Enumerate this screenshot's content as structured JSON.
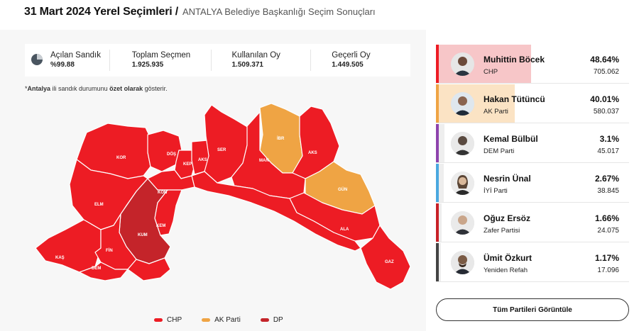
{
  "header": {
    "title": "31 Mart 2024 Yerel Seçimleri /",
    "subtitle": "ANTALYA Belediye Başkanlığı Seçim Sonuçları"
  },
  "stats": [
    {
      "label": "Açılan Sandık",
      "value": "%99.88",
      "icon": "pie-chart-icon"
    },
    {
      "label": "Toplam Seçmen",
      "value": "1.925.935"
    },
    {
      "label": "Kullanılan Oy",
      "value": "1.509.371"
    },
    {
      "label": "Geçerli Oy",
      "value": "1.449.505"
    }
  ],
  "note": {
    "prefix": "*",
    "city": "Antalya",
    "part1": " ili sandık durumunu ",
    "emph": "özet olarak",
    "part2": " gösterir."
  },
  "colors": {
    "chp": "#ed1c24",
    "akp": "#efa444",
    "dp": "#c4242a",
    "dem": "#8e44ad",
    "iyi": "#4aa8e0",
    "zafer": "#c82127",
    "refah": "#444444"
  },
  "map": {
    "districts": [
      {
        "code": "KOR",
        "party": "CHP"
      },
      {
        "code": "DÖŞ",
        "party": "CHP"
      },
      {
        "code": "KEP",
        "party": "CHP"
      },
      {
        "code": "AKS",
        "party": "CHP"
      },
      {
        "code": "SER",
        "party": "CHP"
      },
      {
        "code": "İBR",
        "party": "AK Parti"
      },
      {
        "code": "AKS",
        "party": "CHP"
      },
      {
        "code": "MAN",
        "party": "CHP"
      },
      {
        "code": "GÜN",
        "party": "AK Parti"
      },
      {
        "code": "KON",
        "party": "CHP"
      },
      {
        "code": "ELM",
        "party": "CHP"
      },
      {
        "code": "KUM",
        "party": "DP"
      },
      {
        "code": "KEM",
        "party": "CHP"
      },
      {
        "code": "ALA",
        "party": "CHP"
      },
      {
        "code": "KAŞ",
        "party": "CHP"
      },
      {
        "code": "FİN",
        "party": "CHP"
      },
      {
        "code": "DEM",
        "party": "CHP"
      },
      {
        "code": "GAZ",
        "party": "CHP"
      }
    ]
  },
  "legend": [
    {
      "label": "CHP",
      "color": "#ed1c24"
    },
    {
      "label": "AK Parti",
      "color": "#efa444"
    },
    {
      "label": "DP",
      "color": "#c4242a"
    }
  ],
  "candidates": [
    {
      "name": "Muhittin Böcek",
      "party": "CHP",
      "percent": "48.64%",
      "share": 48.64,
      "votes": "705.062",
      "color": "#ed1c24",
      "fill": "#f7c6c8"
    },
    {
      "name": "Hakan Tütüncü",
      "party": "AK Parti",
      "percent": "40.01%",
      "share": 40.01,
      "votes": "580.037",
      "color": "#efa444",
      "fill": "#fbe3c4"
    },
    {
      "name": "Kemal Bülbül",
      "party": "DEM Parti",
      "percent": "3.1%",
      "share": 3.1,
      "votes": "45.017",
      "color": "#8e44ad",
      "fill": "#eee"
    },
    {
      "name": "Nesrin Ünal",
      "party": "İYİ Parti",
      "percent": "2.67%",
      "share": 2.67,
      "votes": "38.845",
      "color": "#4aa8e0",
      "fill": "#eee"
    },
    {
      "name": "Oğuz Ersöz",
      "party": "Zafer Partisi",
      "percent": "1.66%",
      "share": 1.66,
      "votes": "24.075",
      "color": "#c82127",
      "fill": "#eee"
    },
    {
      "name": "Ümit Özkurt",
      "party": "Yeniden Refah",
      "percent": "1.17%",
      "share": 1.17,
      "votes": "17.096",
      "color": "#444444",
      "fill": "#eee"
    }
  ],
  "button": {
    "label": "Tüm Partileri Görüntüle"
  }
}
